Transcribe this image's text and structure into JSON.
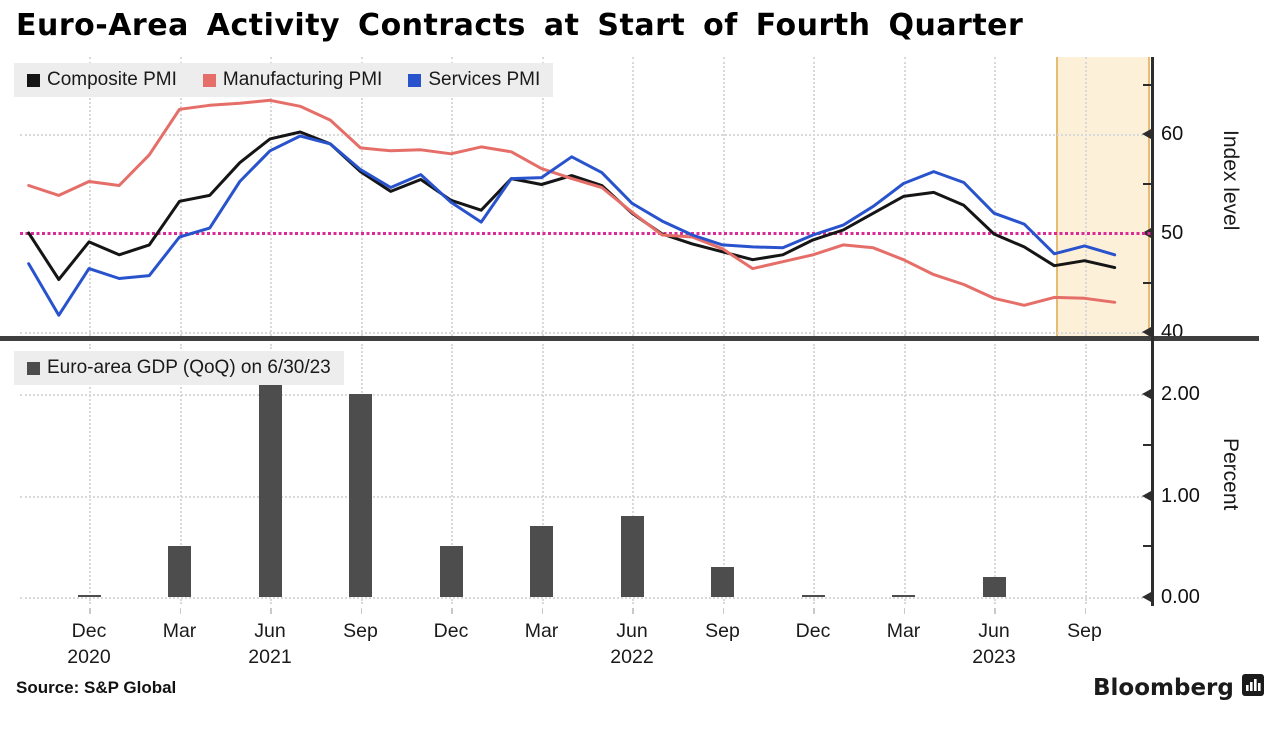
{
  "title": "Euro-Area Activity Contracts at Start of Fourth Quarter",
  "source_label": "Source: S&P Global",
  "brand": {
    "wordmark": "Bloomberg"
  },
  "colors": {
    "composite": "#151515",
    "manufacturing": "#e66e69",
    "services": "#2953cd",
    "bar": "#4d4d4d",
    "reference": "#d92a96",
    "band_fill": "#fcf0d9",
    "band_edge": "#e6bb73",
    "grid": "#d9d9d9",
    "axis": "#2d2d2d",
    "separator": "#3f3f3f",
    "legend_bg": "#ededed"
  },
  "x_axis": {
    "ticks": [
      {
        "month": "Dec",
        "year": "2020"
      },
      {
        "month": "Mar",
        "year": ""
      },
      {
        "month": "Jun",
        "year": "2021"
      },
      {
        "month": "Sep",
        "year": ""
      },
      {
        "month": "Dec",
        "year": ""
      },
      {
        "month": "Mar",
        "year": ""
      },
      {
        "month": "Jun",
        "year": "2022"
      },
      {
        "month": "Sep",
        "year": ""
      },
      {
        "month": "Dec",
        "year": ""
      },
      {
        "month": "Mar",
        "year": ""
      },
      {
        "month": "Jun",
        "year": "2023"
      },
      {
        "month": "Sep",
        "year": ""
      }
    ]
  },
  "chart_data": [
    {
      "type": "line",
      "ylabel": "Index level",
      "ylim": [
        39,
        67.5
      ],
      "yticks": [
        {
          "value": 65,
          "label": ""
        },
        {
          "value": 60,
          "label": "60"
        },
        {
          "value": 55,
          "label": ""
        },
        {
          "value": 50,
          "label": "50"
        },
        {
          "value": 45,
          "label": ""
        },
        {
          "value": 40,
          "label": "40"
        }
      ],
      "reference_line": {
        "value": 50,
        "style": "dotted",
        "color": "#d92a96"
      },
      "highlight_region": {
        "from": "Sep 2023",
        "to": "Oct 2023",
        "fill": "#fcf0d9"
      },
      "legend_position": "top-left",
      "grid": true,
      "x": [
        "Oct 2020",
        "Nov 2020",
        "Dec 2020",
        "Jan 2021",
        "Feb 2021",
        "Mar 2021",
        "Apr 2021",
        "May 2021",
        "Jun 2021",
        "Jul 2021",
        "Aug 2021",
        "Sep 2021",
        "Oct 2021",
        "Nov 2021",
        "Dec 2021",
        "Jan 2022",
        "Feb 2022",
        "Mar 2022",
        "Apr 2022",
        "May 2022",
        "Jun 2022",
        "Jul 2022",
        "Aug 2022",
        "Sep 2022",
        "Oct 2022",
        "Nov 2022",
        "Dec 2022",
        "Jan 2023",
        "Feb 2023",
        "Mar 2023",
        "Apr 2023",
        "May 2023",
        "Jun 2023",
        "Jul 2023",
        "Aug 2023",
        "Sep 2023",
        "Oct 2023"
      ],
      "series": [
        {
          "name": "Composite PMI",
          "color": "#151515",
          "values": [
            50.0,
            45.3,
            49.1,
            47.8,
            48.8,
            53.2,
            53.8,
            57.1,
            59.5,
            60.2,
            59.0,
            56.2,
            54.2,
            55.4,
            53.3,
            52.3,
            55.5,
            54.9,
            55.8,
            54.8,
            52.0,
            49.9,
            48.9,
            48.1,
            47.3,
            47.8,
            49.3,
            50.3,
            52.0,
            53.7,
            54.1,
            52.8,
            49.9,
            48.6,
            46.7,
            47.2,
            46.5
          ]
        },
        {
          "name": "Manufacturing PMI",
          "color": "#e66e69",
          "values": [
            54.8,
            53.8,
            55.2,
            54.8,
            57.9,
            62.5,
            62.9,
            63.1,
            63.4,
            62.8,
            61.4,
            58.6,
            58.3,
            58.4,
            58.0,
            58.7,
            58.2,
            56.5,
            55.5,
            54.6,
            52.1,
            49.8,
            49.6,
            48.4,
            46.4,
            47.1,
            47.8,
            48.8,
            48.5,
            47.3,
            45.8,
            44.8,
            43.4,
            42.7,
            43.5,
            43.4,
            43.0
          ]
        },
        {
          "name": "Services PMI",
          "color": "#2953cd",
          "values": [
            46.9,
            41.7,
            46.4,
            45.4,
            45.7,
            49.6,
            50.5,
            55.2,
            58.3,
            59.8,
            59.0,
            56.4,
            54.6,
            55.9,
            53.1,
            51.1,
            55.5,
            55.6,
            57.7,
            56.1,
            53.0,
            51.2,
            49.8,
            48.8,
            48.6,
            48.5,
            49.8,
            50.8,
            52.7,
            55.0,
            56.2,
            55.1,
            52.0,
            50.9,
            47.9,
            48.7,
            47.8
          ]
        }
      ]
    },
    {
      "type": "bar",
      "title": "Euro-area GDP (QoQ) on 6/30/23",
      "ylabel": "Percent",
      "ylim": [
        -0.1,
        2.35
      ],
      "yticks": [
        {
          "value": 2.0,
          "label": "2.00"
        },
        {
          "value": 1.5,
          "label": ""
        },
        {
          "value": 1.0,
          "label": "1.00"
        },
        {
          "value": 0.5,
          "label": ""
        },
        {
          "value": 0.0,
          "label": "0.00"
        }
      ],
      "categories": [
        "Dec 2020",
        "Mar 2021",
        "Jun 2021",
        "Sep 2021",
        "Dec 2021",
        "Mar 2022",
        "Jun 2022",
        "Sep 2022",
        "Dec 2022",
        "Mar 2023",
        "Jun 2023"
      ],
      "values": [
        0.0,
        0.5,
        2.1,
        2.0,
        0.5,
        0.7,
        0.8,
        0.3,
        0.0,
        0.0,
        0.2
      ],
      "bar_color": "#4d4d4d",
      "grid": true
    }
  ]
}
